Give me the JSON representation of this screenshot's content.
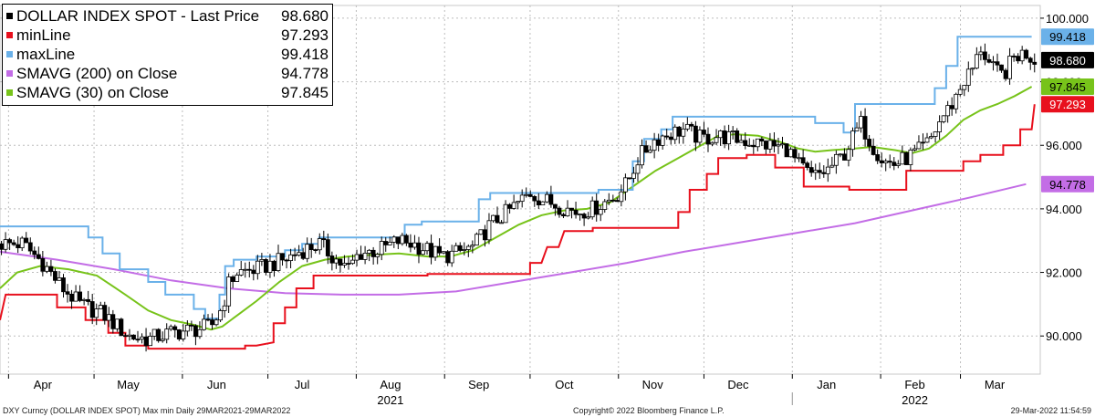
{
  "chart_data": {
    "type": "candlestick",
    "title": "DXY Curncy (DOLLAR INDEX SPOT) Max min  Daily 29MAR2021-29MAR2022",
    "ylim": [
      88.8,
      100.4
    ],
    "yticks": [
      90,
      92,
      94,
      96,
      98,
      100
    ],
    "ytick_labels": [
      "90.000",
      "92.000",
      "94.000",
      "96.000",
      "98.000",
      "100.000"
    ],
    "xlim": [
      0,
      365
    ],
    "months": [
      {
        "label": "Apr",
        "pos": 15
      },
      {
        "label": "May",
        "pos": 45
      },
      {
        "label": "Jun",
        "pos": 76
      },
      {
        "label": "Jul",
        "pos": 106
      },
      {
        "label": "Aug",
        "pos": 137
      },
      {
        "label": "Sep",
        "pos": 168
      },
      {
        "label": "Oct",
        "pos": 198
      },
      {
        "label": "Nov",
        "pos": 229
      },
      {
        "label": "Dec",
        "pos": 259
      },
      {
        "label": "Jan",
        "pos": 290
      },
      {
        "label": "Feb",
        "pos": 321
      },
      {
        "label": "Mar",
        "pos": 349
      }
    ],
    "month_boundaries": [
      3,
      33,
      64,
      94,
      125,
      156,
      186,
      217,
      247,
      278,
      309,
      337
    ],
    "years": [
      {
        "label": "2021",
        "pos": 137
      },
      {
        "label": "2022",
        "pos": 321
      }
    ],
    "year_divider": 278,
    "series": [
      {
        "name": "DOLLAR INDEX SPOT - Last Price",
        "legend_value": "98.680",
        "color": "#000000",
        "kind": "candles",
        "anchors": [
          [
            0,
            92.9
          ],
          [
            8,
            92.9
          ],
          [
            15,
            92.3
          ],
          [
            22,
            91.5
          ],
          [
            28,
            91.0
          ],
          [
            36,
            90.7
          ],
          [
            45,
            90.0
          ],
          [
            52,
            89.9
          ],
          [
            60,
            90.1
          ],
          [
            68,
            90.2
          ],
          [
            74,
            90.3
          ],
          [
            78,
            90.9
          ],
          [
            80,
            91.6
          ],
          [
            83,
            92.0
          ],
          [
            90,
            92.1
          ],
          [
            100,
            92.4
          ],
          [
            106,
            92.7
          ],
          [
            112,
            92.9
          ],
          [
            118,
            92.4
          ],
          [
            122,
            92.1
          ],
          [
            126,
            92.6
          ],
          [
            133,
            92.7
          ],
          [
            140,
            93.0
          ],
          [
            145,
            92.9
          ],
          [
            150,
            92.7
          ],
          [
            155,
            92.5
          ],
          [
            160,
            92.6
          ],
          [
            166,
            92.8
          ],
          [
            172,
            93.5
          ],
          [
            178,
            93.9
          ],
          [
            182,
            94.2
          ],
          [
            186,
            94.5
          ],
          [
            190,
            94.3
          ],
          [
            196,
            94.1
          ],
          [
            202,
            93.9
          ],
          [
            208,
            94.0
          ],
          [
            212,
            94.2
          ],
          [
            216,
            94.4
          ],
          [
            220,
            94.8
          ],
          [
            224,
            95.6
          ],
          [
            230,
            96.2
          ],
          [
            236,
            96.4
          ],
          [
            240,
            96.5
          ],
          [
            246,
            96.2
          ],
          [
            252,
            96.3
          ],
          [
            258,
            96.2
          ],
          [
            264,
            96.1
          ],
          [
            270,
            96.0
          ],
          [
            276,
            95.9
          ],
          [
            280,
            95.4
          ],
          [
            285,
            95.0
          ],
          [
            290,
            95.2
          ],
          [
            296,
            95.7
          ],
          [
            302,
            96.7
          ],
          [
            306,
            96.0
          ],
          [
            310,
            95.5
          ],
          [
            314,
            95.4
          ],
          [
            318,
            95.6
          ],
          [
            322,
            95.8
          ],
          [
            326,
            96.1
          ],
          [
            330,
            96.8
          ],
          [
            334,
            97.3
          ],
          [
            338,
            98.0
          ],
          [
            342,
            98.5
          ],
          [
            344,
            99.1
          ],
          [
            348,
            98.4
          ],
          [
            352,
            98.2
          ],
          [
            356,
            98.8
          ],
          [
            360,
            98.9
          ],
          [
            363,
            98.68
          ]
        ]
      },
      {
        "name": "minLine",
        "legend_value": "97.293",
        "color": "#e8101d",
        "kind": "step",
        "points": [
          [
            0,
            90.5
          ],
          [
            2,
            91.3
          ],
          [
            20,
            91.3
          ],
          [
            20,
            90.9
          ],
          [
            30,
            90.9
          ],
          [
            30,
            90.5
          ],
          [
            38,
            90.5
          ],
          [
            38,
            90.1
          ],
          [
            44,
            90.1
          ],
          [
            44,
            89.7
          ],
          [
            52,
            89.7
          ],
          [
            52,
            89.6
          ],
          [
            86,
            89.6
          ],
          [
            86,
            89.7
          ],
          [
            90,
            89.7
          ],
          [
            96,
            89.8
          ],
          [
            96,
            90.4
          ],
          [
            100,
            90.4
          ],
          [
            100,
            90.9
          ],
          [
            104,
            90.9
          ],
          [
            104,
            91.5
          ],
          [
            110,
            91.5
          ],
          [
            110,
            91.9
          ],
          [
            150,
            91.9
          ],
          [
            150,
            91.95
          ],
          [
            186,
            91.95
          ],
          [
            186,
            92.3
          ],
          [
            190,
            92.3
          ],
          [
            192,
            92.8
          ],
          [
            196,
            92.8
          ],
          [
            198,
            93.3
          ],
          [
            208,
            93.3
          ],
          [
            208,
            93.4
          ],
          [
            238,
            93.4
          ],
          [
            238,
            93.9
          ],
          [
            242,
            93.9
          ],
          [
            242,
            94.6
          ],
          [
            248,
            94.6
          ],
          [
            248,
            95.1
          ],
          [
            252,
            95.1
          ],
          [
            252,
            95.6
          ],
          [
            262,
            95.6
          ],
          [
            262,
            95.7
          ],
          [
            272,
            95.7
          ],
          [
            272,
            95.3
          ],
          [
            282,
            95.3
          ],
          [
            282,
            94.7
          ],
          [
            298,
            94.7
          ],
          [
            298,
            94.6
          ],
          [
            318,
            94.6
          ],
          [
            318,
            95.2
          ],
          [
            338,
            95.2
          ],
          [
            338,
            95.5
          ],
          [
            344,
            95.5
          ],
          [
            344,
            95.7
          ],
          [
            352,
            95.7
          ],
          [
            352,
            96.0
          ],
          [
            358,
            96.0
          ],
          [
            358,
            96.5
          ],
          [
            362,
            96.5
          ],
          [
            363,
            97.293
          ]
        ]
      },
      {
        "name": "maxLine",
        "legend_value": "99.418",
        "color": "#6ab1e9",
        "kind": "step",
        "points": [
          [
            0,
            93.45
          ],
          [
            31,
            93.45
          ],
          [
            31,
            93.1
          ],
          [
            36,
            93.1
          ],
          [
            36,
            92.6
          ],
          [
            42,
            92.6
          ],
          [
            42,
            92.1
          ],
          [
            52,
            92.1
          ],
          [
            52,
            91.7
          ],
          [
            58,
            91.7
          ],
          [
            58,
            91.3
          ],
          [
            68,
            91.3
          ],
          [
            68,
            90.85
          ],
          [
            72,
            90.85
          ],
          [
            72,
            90.55
          ],
          [
            77,
            90.55
          ],
          [
            77,
            91.3
          ],
          [
            79,
            91.3
          ],
          [
            79,
            92.2
          ],
          [
            82,
            92.2
          ],
          [
            82,
            92.4
          ],
          [
            90,
            92.4
          ],
          [
            90,
            92.5
          ],
          [
            100,
            92.5
          ],
          [
            100,
            92.7
          ],
          [
            106,
            92.7
          ],
          [
            106,
            92.9
          ],
          [
            112,
            92.9
          ],
          [
            112,
            93.1
          ],
          [
            142,
            93.1
          ],
          [
            142,
            93.5
          ],
          [
            148,
            93.5
          ],
          [
            148,
            93.6
          ],
          [
            168,
            93.6
          ],
          [
            168,
            94.3
          ],
          [
            172,
            94.3
          ],
          [
            172,
            94.5
          ],
          [
            210,
            94.5
          ],
          [
            210,
            94.6
          ],
          [
            222,
            94.6
          ],
          [
            222,
            95.5
          ],
          [
            226,
            95.5
          ],
          [
            226,
            96.2
          ],
          [
            232,
            96.2
          ],
          [
            232,
            96.5
          ],
          [
            236,
            96.5
          ],
          [
            236,
            96.9
          ],
          [
            286,
            96.9
          ],
          [
            286,
            96.7
          ],
          [
            296,
            96.7
          ],
          [
            296,
            96.4
          ],
          [
            300,
            96.4
          ],
          [
            300,
            97.3
          ],
          [
            328,
            97.3
          ],
          [
            328,
            97.8
          ],
          [
            332,
            97.8
          ],
          [
            332,
            98.5
          ],
          [
            336,
            98.5
          ],
          [
            336,
            99.418
          ],
          [
            362,
            99.418
          ]
        ]
      },
      {
        "name": "SMAVG (200)  on Close",
        "legend_value": "94.778",
        "color": "#c36de6",
        "kind": "line",
        "points": [
          [
            0,
            92.65
          ],
          [
            20,
            92.4
          ],
          [
            40,
            92.1
          ],
          [
            60,
            91.75
          ],
          [
            80,
            91.5
          ],
          [
            100,
            91.35
          ],
          [
            120,
            91.3
          ],
          [
            140,
            91.3
          ],
          [
            160,
            91.4
          ],
          [
            180,
            91.7
          ],
          [
            200,
            92.0
          ],
          [
            220,
            92.3
          ],
          [
            240,
            92.65
          ],
          [
            260,
            92.95
          ],
          [
            280,
            93.25
          ],
          [
            300,
            93.55
          ],
          [
            320,
            93.95
          ],
          [
            340,
            94.35
          ],
          [
            360,
            94.778
          ]
        ]
      },
      {
        "name": "SMAVG (30)  on Close",
        "legend_value": "97.845",
        "color": "#77c31a",
        "kind": "line",
        "points": [
          [
            0,
            91.5
          ],
          [
            6,
            92.0
          ],
          [
            14,
            92.2
          ],
          [
            24,
            92.1
          ],
          [
            34,
            91.9
          ],
          [
            44,
            91.3
          ],
          [
            52,
            90.8
          ],
          [
            60,
            90.5
          ],
          [
            68,
            90.35
          ],
          [
            74,
            90.2
          ],
          [
            78,
            90.3
          ],
          [
            84,
            90.7
          ],
          [
            90,
            91.1
          ],
          [
            98,
            91.7
          ],
          [
            106,
            92.2
          ],
          [
            114,
            92.4
          ],
          [
            122,
            92.5
          ],
          [
            130,
            92.55
          ],
          [
            140,
            92.6
          ],
          [
            150,
            92.5
          ],
          [
            158,
            92.5
          ],
          [
            166,
            92.7
          ],
          [
            174,
            93.1
          ],
          [
            182,
            93.5
          ],
          [
            190,
            93.8
          ],
          [
            198,
            93.95
          ],
          [
            206,
            94.0
          ],
          [
            214,
            94.2
          ],
          [
            222,
            94.7
          ],
          [
            230,
            95.2
          ],
          [
            238,
            95.6
          ],
          [
            246,
            96.0
          ],
          [
            252,
            96.3
          ],
          [
            258,
            96.35
          ],
          [
            266,
            96.3
          ],
          [
            274,
            96.1
          ],
          [
            280,
            95.9
          ],
          [
            286,
            95.8
          ],
          [
            292,
            95.85
          ],
          [
            300,
            95.9
          ],
          [
            306,
            95.95
          ],
          [
            314,
            95.85
          ],
          [
            320,
            95.75
          ],
          [
            326,
            95.9
          ],
          [
            332,
            96.3
          ],
          [
            338,
            96.8
          ],
          [
            344,
            97.1
          ],
          [
            350,
            97.3
          ],
          [
            356,
            97.55
          ],
          [
            362,
            97.845
          ]
        ]
      }
    ],
    "value_tags": [
      {
        "series": "maxLine",
        "value": 99.418,
        "label": "99.418",
        "bg": "#6ab1e9",
        "fg": "#000000"
      },
      {
        "series": "DOLLAR INDEX SPOT - Last Price",
        "value": 98.68,
        "label": "98.680",
        "bg": "#000000",
        "fg": "#ffffff"
      },
      {
        "series": "SMAVG (30)  on Close",
        "value": 97.845,
        "label": "97.845",
        "bg": "#77c31a",
        "fg": "#000000"
      },
      {
        "series": "minLine",
        "value": 97.293,
        "label": "97.293",
        "bg": "#e8101d",
        "fg": "#ffffff"
      },
      {
        "series": "SMAVG (200)  on Close",
        "value": 94.778,
        "label": "94.778",
        "bg": "#c36de6",
        "fg": "#000000"
      }
    ],
    "grid": true
  },
  "footer": {
    "left": "DXY Curncy (DOLLAR INDEX SPOT) Max min  Daily 29MAR2021-29MAR2022",
    "center": "Copyright© 2022 Bloomberg Finance L.P.",
    "right": "29-Mar-2022 11:54:59"
  }
}
